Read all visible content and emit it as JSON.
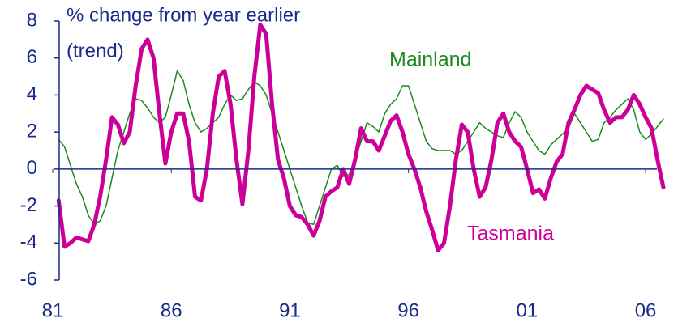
{
  "chart_data": {
    "type": "line",
    "y_label": [
      "% change from year earlier",
      "(trend)"
    ],
    "x": [
      1981.25,
      1981.5,
      1981.75,
      1982,
      1982.25,
      1982.5,
      1982.75,
      1983,
      1983.25,
      1983.5,
      1983.75,
      1984,
      1984.25,
      1984.5,
      1984.75,
      1985,
      1985.25,
      1985.5,
      1985.75,
      1986,
      1986.25,
      1986.5,
      1986.75,
      1987,
      1987.25,
      1987.5,
      1987.75,
      1988,
      1988.25,
      1988.5,
      1988.75,
      1989,
      1989.25,
      1989.5,
      1989.75,
      1990,
      1990.25,
      1990.5,
      1990.75,
      1991,
      1991.25,
      1991.5,
      1991.75,
      1992,
      1992.25,
      1992.5,
      1992.75,
      1993,
      1993.25,
      1993.5,
      1993.75,
      1994,
      1994.25,
      1994.5,
      1994.75,
      1995,
      1995.25,
      1995.5,
      1995.75,
      1996,
      1996.25,
      1996.5,
      1996.75,
      1997,
      1997.25,
      1997.5,
      1997.75,
      1998,
      1998.25,
      1998.5,
      1998.75,
      1999,
      1999.25,
      1999.5,
      1999.75,
      2000,
      2000.25,
      2000.5,
      2000.75,
      2001,
      2001.25,
      2001.5,
      2001.75,
      2002,
      2002.25,
      2002.5,
      2002.75,
      2003,
      2003.25,
      2003.5,
      2003.75,
      2004,
      2004.25,
      2004.5,
      2004.75,
      2005,
      2005.25,
      2005.5,
      2005.75,
      2006,
      2006.25,
      2006.5,
      2006.75
    ],
    "series": [
      {
        "name": "Mainland",
        "color": "#1a8a1a",
        "width": 1.5,
        "values": [
          1.6,
          1.2,
          0.2,
          -0.8,
          -1.5,
          -2.5,
          -3.0,
          -2.8,
          -2.0,
          -0.5,
          1.0,
          2.0,
          3.0,
          3.8,
          3.7,
          3.3,
          2.8,
          2.5,
          2.8,
          4.0,
          5.3,
          4.8,
          3.5,
          2.5,
          2.0,
          2.2,
          2.5,
          2.8,
          3.5,
          4.0,
          3.7,
          3.8,
          4.3,
          4.7,
          4.5,
          4.0,
          3.0,
          2.0,
          1.0,
          0,
          -1.0,
          -2.0,
          -2.9,
          -3.0,
          -2.0,
          -1.0,
          0,
          0.2,
          -0.4,
          -0.3,
          0.5,
          1.5,
          2.5,
          2.3,
          2.0,
          3.0,
          3.5,
          3.8,
          4.5,
          4.5,
          3.5,
          2.5,
          1.5,
          1.1,
          1.0,
          1.0,
          1.0,
          0.8,
          1.0,
          1.5,
          2.0,
          2.5,
          2.2,
          2.0,
          1.8,
          1.7,
          2.5,
          3.1,
          2.8,
          2.0,
          1.5,
          1.0,
          0.8,
          1.3,
          1.6,
          1.9,
          2.2,
          3.0,
          2.5,
          2.0,
          1.5,
          1.6,
          2.5,
          2.8,
          3.2,
          3.5,
          3.8,
          3.2,
          2.0,
          1.6,
          1.9,
          2.3,
          2.7
        ]
      },
      {
        "name": "Tasmania",
        "color": "#cc0099",
        "width": 5,
        "values": [
          -1.7,
          -4.2,
          -4.0,
          -3.7,
          -3.8,
          -3.9,
          -3.0,
          -1.5,
          0.5,
          2.8,
          2.4,
          1.4,
          2.0,
          4.5,
          6.5,
          7.0,
          6.0,
          3.0,
          0.3,
          2.0,
          3.0,
          3.0,
          1.5,
          -1.5,
          -1.7,
          0,
          3.0,
          5.0,
          5.3,
          3.5,
          0.5,
          -1.9,
          1.0,
          5.0,
          7.8,
          7.3,
          3.5,
          0.5,
          -0.5,
          -2.0,
          -2.5,
          -2.6,
          -3.0,
          -3.6,
          -2.8,
          -1.5,
          -1.2,
          -1.0,
          0,
          -0.8,
          0.5,
          2.2,
          1.5,
          1.5,
          1.0,
          1.8,
          2.6,
          2.9,
          2.0,
          0.8,
          0,
          -1.0,
          -2.3,
          -3.3,
          -4.4,
          -4.0,
          -2.0,
          0.5,
          2.4,
          2.0,
          0,
          -1.5,
          -1.0,
          0.5,
          2.5,
          3.0,
          2.0,
          1.5,
          1.2,
          0,
          -1.3,
          -1.1,
          -1.6,
          -0.5,
          0.4,
          0.8,
          2.5,
          3.2,
          4.0,
          4.5,
          4.3,
          4.1,
          3.2,
          2.5,
          2.8,
          2.8,
          3.2,
          4.0,
          3.5,
          2.8,
          2.2,
          0.5,
          -1.0
        ]
      }
    ],
    "xlim": [
      1981,
      2006.75
    ],
    "xticks": [
      {
        "value": 1981,
        "label": "81"
      },
      {
        "value": 1986,
        "label": "86"
      },
      {
        "value": 1991,
        "label": "91"
      },
      {
        "value": 1996,
        "label": "96"
      },
      {
        "value": 2001,
        "label": "01"
      },
      {
        "value": 2006,
        "label": "06"
      }
    ],
    "ylim": [
      -6,
      8
    ],
    "yticks": [
      -6,
      -4,
      -2,
      0,
      2,
      4,
      6,
      8
    ],
    "grid": false
  }
}
